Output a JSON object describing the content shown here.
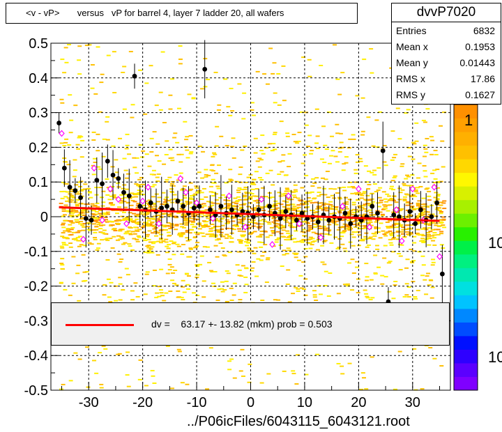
{
  "title": "<v - vP>       versus   vP for barrel 4, layer 7 ladder 20, all wafers",
  "stats": {
    "name": "dvvP7020",
    "rows": [
      {
        "key": "Entries",
        "value": "6832"
      },
      {
        "key": "Mean x",
        "value": "0.1953"
      },
      {
        "key": "Mean y",
        "value": "0.01443"
      },
      {
        "key": "RMS x",
        "value": "17.86"
      },
      {
        "key": "RMS y",
        "value": "0.1627"
      }
    ]
  },
  "legend": {
    "fit_text": "dv =    63.17 +- 13.82 (mkm) prob = 0.503",
    "line_color": "#ff0000"
  },
  "palette": {
    "labels": [
      "1",
      "10",
      "10"
    ],
    "colors": [
      "#7f00ff",
      "#5b00ff",
      "#2e00ff",
      "#0010ff",
      "#004cff",
      "#0088ff",
      "#00c3ff",
      "#00e0e0",
      "#00e8b0",
      "#00f080",
      "#00f048",
      "#28f000",
      "#6cf000",
      "#a8f000",
      "#d8f000",
      "#fff800",
      "#ffd800",
      "#ffc000",
      "#ffb000",
      "#ffa000",
      "#ff9000"
    ]
  },
  "footer": "../P06icFiles/6043115_6043121.root",
  "chart_data": {
    "type": "scatter",
    "xlim": [
      -37,
      37
    ],
    "ylim": [
      -0.5,
      0.5
    ],
    "x_ticks": [
      -30,
      -20,
      -10,
      0,
      10,
      20,
      30
    ],
    "y_ticks": [
      -0.5,
      -0.4,
      -0.3,
      -0.2,
      -0.1,
      0,
      0.1,
      0.2,
      0.3,
      0.4,
      0.5
    ],
    "grid": true,
    "fit": {
      "x": [
        -35.5,
        35
      ],
      "y": [
        0.027,
        -0.012
      ]
    },
    "profile_points": [
      {
        "x": -35.5,
        "y": 0.27
      },
      {
        "x": -34.5,
        "y": 0.14
      },
      {
        "x": -33.5,
        "y": 0.085
      },
      {
        "x": -32.5,
        "y": 0.075
      },
      {
        "x": -31.5,
        "y": 0.055
      },
      {
        "x": -30.5,
        "y": -0.005
      },
      {
        "x": -29.5,
        "y": -0.01
      },
      {
        "x": -28.5,
        "y": 0.105
      },
      {
        "x": -27.5,
        "y": 0.095
      },
      {
        "x": -26.5,
        "y": 0.16
      },
      {
        "x": -25.5,
        "y": 0.12
      },
      {
        "x": -24.5,
        "y": 0.11
      },
      {
        "x": -23.5,
        "y": 0.07
      },
      {
        "x": -22.5,
        "y": 0.06
      },
      {
        "x": -21.5,
        "y": 0.405
      },
      {
        "x": -20.5,
        "y": 0.03
      },
      {
        "x": -19.5,
        "y": 0.02
      },
      {
        "x": -18.5,
        "y": 0.04
      },
      {
        "x": -17.5,
        "y": 0.015
      },
      {
        "x": -16.5,
        "y": 0.025
      },
      {
        "x": -15.5,
        "y": 0.03
      },
      {
        "x": -14.5,
        "y": 0.02
      },
      {
        "x": -13.5,
        "y": 0.045
      },
      {
        "x": -12.5,
        "y": 0.03
      },
      {
        "x": -11.5,
        "y": 0.01
      },
      {
        "x": -10.5,
        "y": 0.025
      },
      {
        "x": -9.5,
        "y": 0.03
      },
      {
        "x": -8.5,
        "y": 0.425
      },
      {
        "x": -7.5,
        "y": 0.02
      },
      {
        "x": -6.5,
        "y": 0.005
      },
      {
        "x": -5.5,
        "y": 0.03
      },
      {
        "x": -4.5,
        "y": 0.01
      },
      {
        "x": -3.5,
        "y": 0.02
      },
      {
        "x": -2.5,
        "y": 0.005
      },
      {
        "x": -1.5,
        "y": 0.015
      },
      {
        "x": -0.5,
        "y": 0.01
      },
      {
        "x": 0.5,
        "y": 0.0
      },
      {
        "x": 1.5,
        "y": 0.02
      },
      {
        "x": 2.5,
        "y": 0.005
      },
      {
        "x": 3.5,
        "y": 0.03
      },
      {
        "x": 4.5,
        "y": 0.01
      },
      {
        "x": 5.5,
        "y": -0.005
      },
      {
        "x": 6.5,
        "y": 0.015
      },
      {
        "x": 7.5,
        "y": 0.005
      },
      {
        "x": 8.5,
        "y": -0.01
      },
      {
        "x": 9.5,
        "y": 0.01
      },
      {
        "x": 10.5,
        "y": -0.005
      },
      {
        "x": 11.5,
        "y": 0.0
      },
      {
        "x": 12.5,
        "y": -0.015
      },
      {
        "x": 13.5,
        "y": 0.005
      },
      {
        "x": 14.5,
        "y": -0.01
      },
      {
        "x": 15.5,
        "y": 0.0
      },
      {
        "x": 16.5,
        "y": -0.005
      },
      {
        "x": 17.5,
        "y": 0.01
      },
      {
        "x": 18.5,
        "y": -0.02
      },
      {
        "x": 19.5,
        "y": 0.0
      },
      {
        "x": 20.5,
        "y": -0.01
      },
      {
        "x": 21.5,
        "y": 0.0
      },
      {
        "x": 22.5,
        "y": 0.03
      },
      {
        "x": 23.5,
        "y": 0.01
      },
      {
        "x": 24.5,
        "y": 0.19
      },
      {
        "x": 25.5,
        "y": -0.245
      },
      {
        "x": 26.5,
        "y": 0.005
      },
      {
        "x": 27.5,
        "y": 0.0
      },
      {
        "x": 28.5,
        "y": -0.01
      },
      {
        "x": 29.5,
        "y": 0.015
      },
      {
        "x": 30.5,
        "y": -0.02
      },
      {
        "x": 31.5,
        "y": 0.02
      },
      {
        "x": 32.5,
        "y": -0.01
      },
      {
        "x": 33.5,
        "y": 0.0
      },
      {
        "x": 34.5,
        "y": 0.04
      },
      {
        "x": 35.5,
        "y": -0.165
      }
    ],
    "open_points": [
      {
        "x": -35,
        "y": 0.24
      },
      {
        "x": -31,
        "y": -0.065
      },
      {
        "x": -29,
        "y": 0.14
      },
      {
        "x": -27.5,
        "y": -0.01
      },
      {
        "x": -26,
        "y": 0.08
      },
      {
        "x": -24.5,
        "y": 0.05
      },
      {
        "x": -23,
        "y": -0.02
      },
      {
        "x": -20,
        "y": 0.045
      },
      {
        "x": -19,
        "y": 0.085
      },
      {
        "x": -17,
        "y": -0.02
      },
      {
        "x": -13,
        "y": 0.11
      },
      {
        "x": -12,
        "y": 0.07
      },
      {
        "x": -10,
        "y": 0.04
      },
      {
        "x": -7,
        "y": -0.005
      },
      {
        "x": -4,
        "y": 0.06
      },
      {
        "x": -1,
        "y": -0.03
      },
      {
        "x": 2,
        "y": 0.05
      },
      {
        "x": 4,
        "y": -0.08
      },
      {
        "x": 7,
        "y": 0.06
      },
      {
        "x": 9,
        "y": -0.02
      },
      {
        "x": 13,
        "y": -0.06
      },
      {
        "x": 17,
        "y": 0.03
      },
      {
        "x": 20,
        "y": 0.08
      },
      {
        "x": 22,
        "y": -0.03
      },
      {
        "x": 27,
        "y": 0.02
      },
      {
        "x": 28,
        "y": -0.07
      },
      {
        "x": 30,
        "y": 0.08
      },
      {
        "x": 32,
        "y": -0.01
      },
      {
        "x": 34,
        "y": 0.085
      },
      {
        "x": 35,
        "y": -0.115
      }
    ]
  }
}
